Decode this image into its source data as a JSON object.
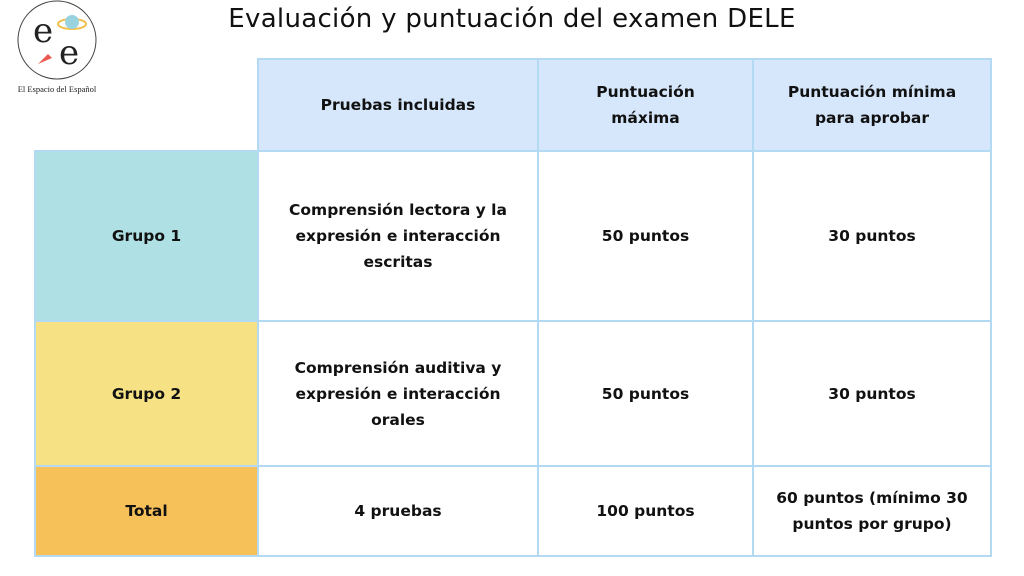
{
  "logo": {
    "letters": [
      "e",
      "e"
    ],
    "caption": "El Espacio del Español"
  },
  "title": "Evaluación y puntuación del examen DELE",
  "table": {
    "header": [
      "Pruebas incluidas",
      "Puntuación máxima",
      "Puntuación mínima para aprobar"
    ],
    "rows": [
      [
        "Grupo 1",
        "Comprensión lectora y la expresión e interacción escritas",
        "50 puntos",
        "30 puntos"
      ],
      [
        "Grupo 2",
        "Comprensión auditiva y expresión e interacción orales",
        "50 puntos",
        "30 puntos"
      ],
      [
        "Total",
        "4 pruebas",
        "100 puntos",
        "60 puntos (mínimo 30 puntos por grupo)"
      ]
    ]
  }
}
